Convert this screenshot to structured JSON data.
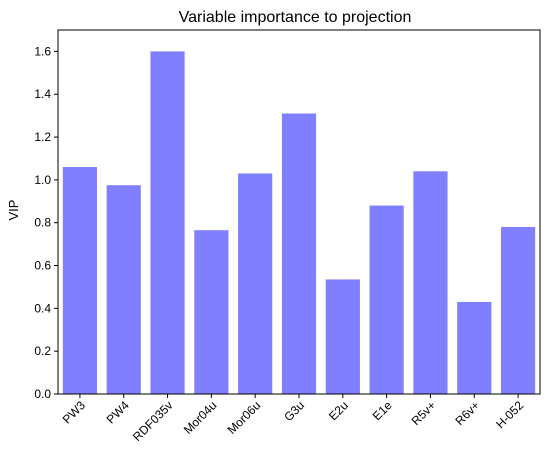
{
  "chart_data": {
    "type": "bar",
    "title": "Variable importance to projection",
    "xlabel": "",
    "ylabel": "VIP",
    "categories": [
      "PW3",
      "PW4",
      "RDF035v",
      "Mor04u",
      "Mor06u",
      "G3u",
      "E2u",
      "E1e",
      "R5v+",
      "R6v+",
      "H-052"
    ],
    "values": [
      1.06,
      0.975,
      1.6,
      0.765,
      1.03,
      1.31,
      0.535,
      0.88,
      1.04,
      0.43,
      0.78
    ],
    "ylim": [
      0.0,
      1.7
    ],
    "yticks": [
      "0.0",
      "0.2",
      "0.4",
      "0.6",
      "0.8",
      "1.0",
      "1.2",
      "1.4",
      "1.6"
    ],
    "bar_color": "#7f7fff",
    "grid": false,
    "legend": "none",
    "xtick_rotation_deg": 45
  }
}
